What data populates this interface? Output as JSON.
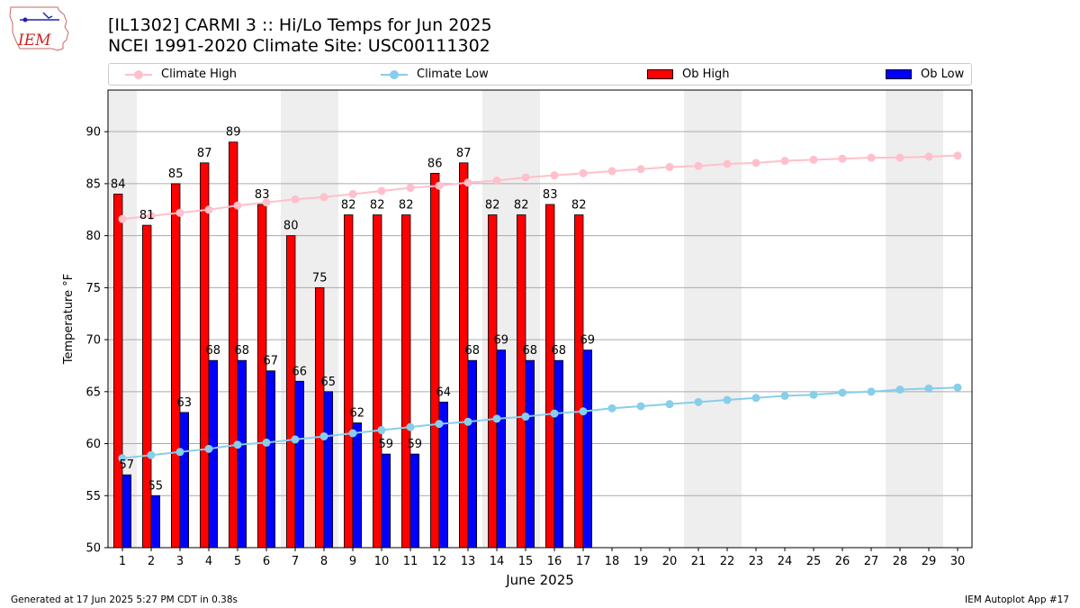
{
  "logo": {
    "text": "IEM"
  },
  "title": {
    "line1": "[IL1302] CARMI 3 :: Hi/Lo Temps for Jun 2025",
    "line2": "NCEI 1991-2020 Climate Site: USC00111302"
  },
  "legend": {
    "climate_high": "Climate High",
    "climate_low": "Climate Low",
    "ob_high": "Ob High",
    "ob_low": "Ob Low"
  },
  "colors": {
    "climate_high": "#ffc0cb",
    "climate_low": "#87ceeb",
    "ob_high": "#ff0000",
    "ob_low": "#0000ff",
    "weekend_shade": "#eeeeee",
    "grid": "#aaaaaa"
  },
  "footer": {
    "left": "Generated at 17 Jun 2025 5:27 PM CDT in 0.38s",
    "right": "IEM Autoplot App #17"
  },
  "chart_data": {
    "type": "bar",
    "xlabel": "June 2025",
    "ylabel": "Temperature °F",
    "ylim": [
      50,
      94
    ],
    "yticks": [
      50,
      55,
      60,
      65,
      70,
      75,
      80,
      85,
      90
    ],
    "days": [
      1,
      2,
      3,
      4,
      5,
      6,
      7,
      8,
      9,
      10,
      11,
      12,
      13,
      14,
      15,
      16,
      17,
      18,
      19,
      20,
      21,
      22,
      23,
      24,
      25,
      26,
      27,
      28,
      29,
      30
    ],
    "weekend_shaded_days": [
      [
        1,
        1
      ],
      [
        7,
        8
      ],
      [
        14,
        15
      ],
      [
        21,
        22
      ],
      [
        28,
        29
      ]
    ],
    "grid": "horizontal",
    "legend_position": "top",
    "series": [
      {
        "name": "Ob High",
        "kind": "bar",
        "values": [
          84,
          81,
          85,
          87,
          89,
          83,
          80,
          75,
          82,
          82,
          82,
          86,
          87,
          82,
          82,
          83,
          82
        ]
      },
      {
        "name": "Ob Low",
        "kind": "bar",
        "values": [
          57,
          55,
          63,
          68,
          68,
          67,
          66,
          65,
          62,
          59,
          59,
          64,
          68,
          69,
          68,
          68,
          69
        ]
      },
      {
        "name": "Climate High",
        "kind": "line",
        "values": [
          81.6,
          81.9,
          82.2,
          82.5,
          82.9,
          83.2,
          83.5,
          83.7,
          84.0,
          84.3,
          84.6,
          84.8,
          85.1,
          85.3,
          85.6,
          85.8,
          86.0,
          86.2,
          86.4,
          86.6,
          86.7,
          86.9,
          87.0,
          87.2,
          87.3,
          87.4,
          87.5,
          87.5,
          87.6,
          87.7
        ]
      },
      {
        "name": "Climate Low",
        "kind": "line",
        "values": [
          58.6,
          58.9,
          59.2,
          59.5,
          59.9,
          60.1,
          60.4,
          60.7,
          61.0,
          61.3,
          61.6,
          61.9,
          62.1,
          62.4,
          62.6,
          62.9,
          63.1,
          63.4,
          63.6,
          63.8,
          64.0,
          64.2,
          64.4,
          64.6,
          64.7,
          64.9,
          65.0,
          65.2,
          65.3,
          65.4
        ]
      }
    ]
  }
}
